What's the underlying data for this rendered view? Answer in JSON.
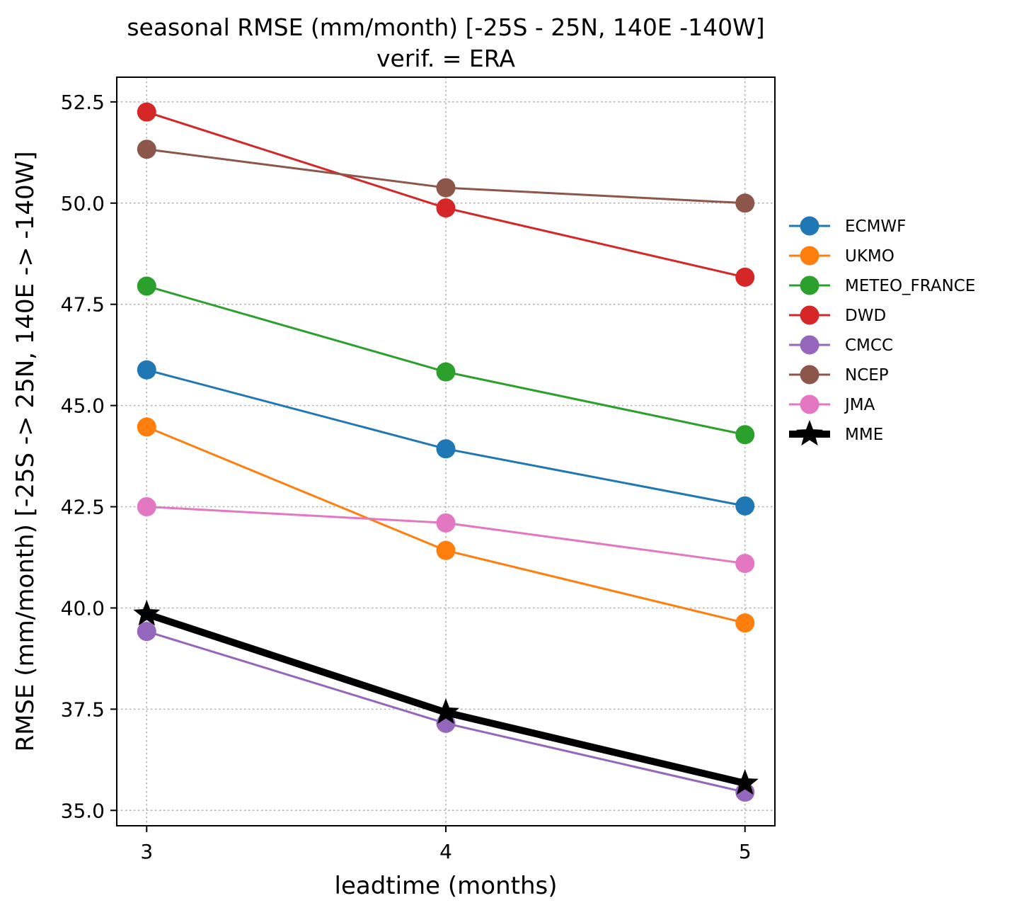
{
  "chart_data": {
    "type": "line",
    "title": "seasonal RMSE (mm/month) [-25S - 25N, 140E -140W]",
    "subtitle": "verif. = ERA",
    "xlabel": "leadtime (months)",
    "ylabel": "RMSE (mm/month) [-25S -> 25N, 140E -> -140W]",
    "x": [
      3,
      4,
      5
    ],
    "xticks": [
      "3",
      "4",
      "5"
    ],
    "xlim": [
      2.9,
      5.1
    ],
    "yticks": [
      "35.0",
      "37.5",
      "40.0",
      "42.5",
      "45.0",
      "47.5",
      "50.0",
      "52.5"
    ],
    "ylim": [
      34.62,
      53.11
    ],
    "grid": true,
    "legend_position": "outside-right",
    "series": [
      {
        "name": "ECMWF",
        "values": [
          45.88,
          43.93,
          42.52
        ],
        "color": "#1f77b4",
        "marker": "circle"
      },
      {
        "name": "UKMO",
        "values": [
          44.47,
          41.42,
          39.63
        ],
        "color": "#ff7f0e",
        "marker": "circle"
      },
      {
        "name": "METEO_FRANCE",
        "values": [
          47.95,
          45.83,
          44.28
        ],
        "color": "#2ca02c",
        "marker": "circle"
      },
      {
        "name": "DWD",
        "values": [
          52.25,
          49.88,
          48.17
        ],
        "color": "#d62728",
        "marker": "circle"
      },
      {
        "name": "CMCC",
        "values": [
          39.42,
          37.15,
          35.45
        ],
        "color": "#9467bd",
        "marker": "circle"
      },
      {
        "name": "NCEP",
        "values": [
          51.33,
          50.38,
          50.0
        ],
        "color": "#8c564b",
        "marker": "circle"
      },
      {
        "name": "JMA",
        "values": [
          42.5,
          42.1,
          41.1
        ],
        "color": "#e377c2",
        "marker": "circle"
      },
      {
        "name": "MME",
        "values": [
          39.85,
          37.42,
          35.67
        ],
        "color": "#000000",
        "marker": "star"
      }
    ]
  }
}
